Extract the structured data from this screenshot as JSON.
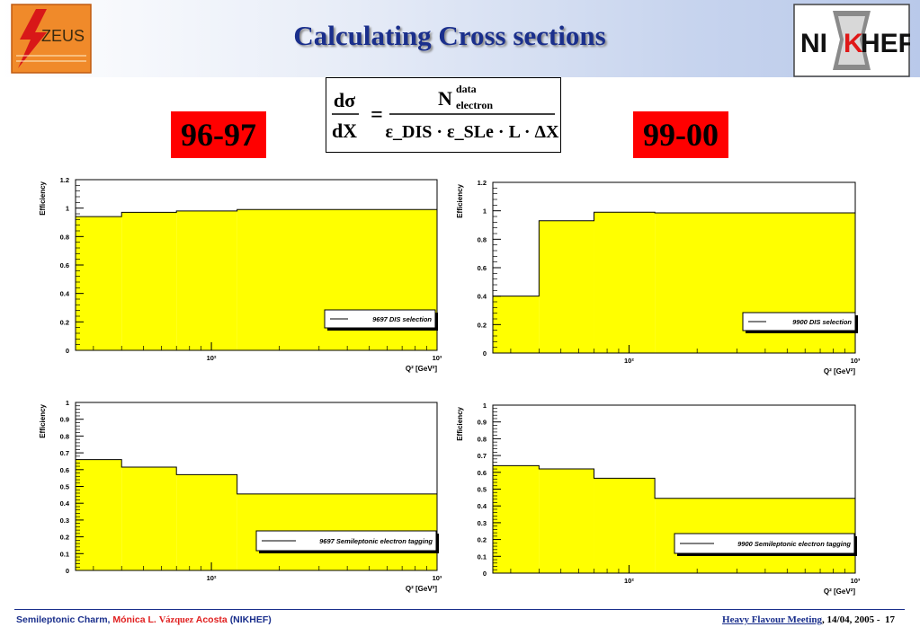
{
  "header": {
    "title": "Calculating Cross sections",
    "left_logo_text": "ZEUS",
    "right_logo_text": "NIKHEF"
  },
  "periods": {
    "left": "96-97",
    "right": "99-00"
  },
  "formula": {
    "lhs_num": "dσ",
    "lhs_den": "dX",
    "equals": "=",
    "rhs_num_main": "N",
    "rhs_num_sup": "data",
    "rhs_num_sub": "electron",
    "rhs_den": "ε_DIS · ε_SLe · L · ΔX"
  },
  "chart_data": [
    {
      "type": "line",
      "step": true,
      "fill": "#ffff00",
      "ylabel": "Efficiency",
      "xlabel": "Q² [GeV²]",
      "xscale": "log",
      "xlim": [
        25,
        1000
      ],
      "ylim": [
        0,
        1.2
      ],
      "yticks": [
        "0",
        "0.2",
        "0.4",
        "0.6",
        "0.8",
        "1",
        "1.2"
      ],
      "xticks": [
        "10²",
        "10³"
      ],
      "edges": [
        25,
        40,
        70,
        130,
        1000
      ],
      "values": [
        0.94,
        0.97,
        0.98,
        0.99
      ],
      "legend": "9697 DIS selection"
    },
    {
      "type": "line",
      "step": true,
      "fill": "#ffff00",
      "ylabel": "Efficiency",
      "xlabel": "Q² [GeV²]",
      "xscale": "log",
      "xlim": [
        25,
        1000
      ],
      "ylim": [
        0,
        1.2
      ],
      "yticks": [
        "0",
        "0.2",
        "0.4",
        "0.6",
        "0.8",
        "1",
        "1.2"
      ],
      "xticks": [
        "10²",
        "10³"
      ],
      "edges": [
        25,
        40,
        70,
        130,
        1000
      ],
      "values": [
        0.4,
        0.93,
        0.99,
        0.985
      ],
      "legend": "9900 DIS selection"
    },
    {
      "type": "line",
      "step": true,
      "fill": "#ffff00",
      "ylabel": "Efficiency",
      "xlabel": "Q² [GeV²]",
      "xscale": "log",
      "xlim": [
        25,
        1000
      ],
      "ylim": [
        0,
        1
      ],
      "yticks": [
        "0",
        "0.1",
        "0.2",
        "0.3",
        "0.4",
        "0.5",
        "0.6",
        "0.7",
        "0.8",
        "0.9",
        "1"
      ],
      "xticks": [
        "10²",
        "10³"
      ],
      "edges": [
        25,
        40,
        70,
        130,
        1000
      ],
      "values": [
        0.66,
        0.615,
        0.57,
        0.455
      ],
      "legend": "9697 Semileptonic electron tagging"
    },
    {
      "type": "line",
      "step": true,
      "fill": "#ffff00",
      "ylabel": "Efficiency",
      "xlabel": "Q² [GeV²]",
      "xscale": "log",
      "xlim": [
        25,
        1000
      ],
      "ylim": [
        0,
        1
      ],
      "yticks": [
        "0",
        "0.1",
        "0.2",
        "0.3",
        "0.4",
        "0.5",
        "0.6",
        "0.7",
        "0.8",
        "0.9",
        "1"
      ],
      "xticks": [
        "10²",
        "10³"
      ],
      "edges": [
        25,
        40,
        70,
        130,
        1000
      ],
      "values": [
        0.64,
        0.62,
        0.565,
        0.445
      ],
      "legend": "9900 Semileptonic electron tagging"
    }
  ],
  "footer": {
    "topic": "Semileptonic Charm,",
    "author_first": "Mónica L.",
    "author_middle": "Vázquez",
    "author_last": "Acosta",
    "institute": "(NIKHEF)",
    "meeting": "Heavy Flavour Meeting",
    "date": ", 14/04, 2005 -",
    "page": "17"
  },
  "colors": {
    "title": "#1a2f8c",
    "period_bg": "#ff0000",
    "fill": "#ffff00",
    "author": "#e02020"
  }
}
